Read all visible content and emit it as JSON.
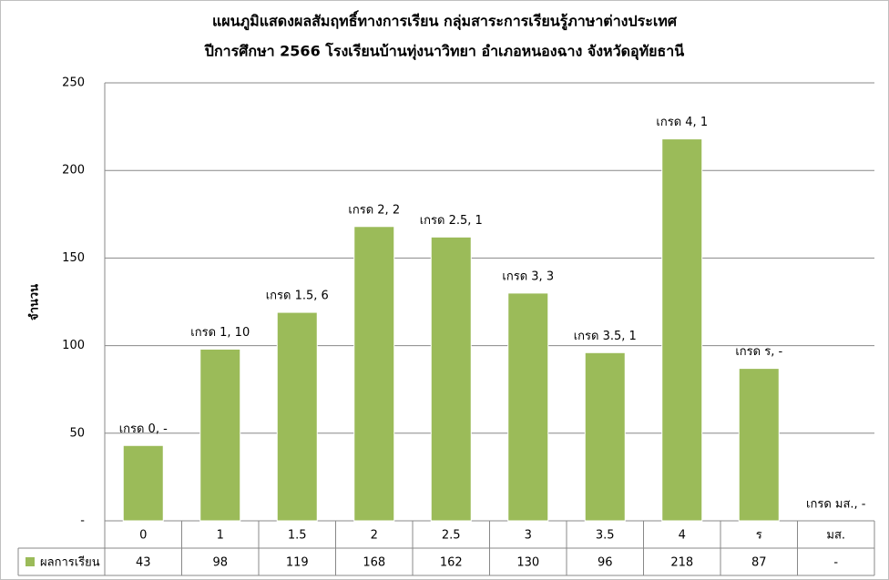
{
  "chart_data": {
    "type": "bar",
    "title": "แผนภูมิแสดงผลสัมฤทธิ์ทางการเรียน กลุ่มสาระการเรียนรู้ภาษาต่างประเทศ",
    "subtitle": "ปีการศึกษา 2566 โรงเรียนบ้านทุ่งนาวิทยา อำเภอหนองฉาง จังหวัดอุทัยธานี",
    "y_label": "จำนวน",
    "categories": [
      "0",
      "1",
      "1.5",
      "2",
      "2.5",
      "3",
      "3.5",
      "4",
      "ร",
      "มส."
    ],
    "series": [
      {
        "name": "ผลการเรียน",
        "color": "#9bbb59",
        "values": [
          43,
          98,
          119,
          168,
          162,
          130,
          96,
          218,
          87,
          0
        ],
        "value_labels": [
          "43",
          "98",
          "119",
          "168",
          "162",
          "130",
          "96",
          "218",
          "87",
          "-"
        ]
      }
    ],
    "bar_labels": [
      "เกรด 0,  -",
      "เกรด 1,  10",
      "เกรด 1.5,  6",
      "เกรด 2,  2",
      "เกรด 2.5,  1",
      "เกรด 3,  3",
      "เกรด 3.5,  1",
      "เกรด 4,  1",
      "เกรด ร,  -",
      "เกรด มส.,  -"
    ],
    "ylim": [
      0,
      250
    ],
    "yticks": [
      {
        "value": 0,
        "label": "-"
      },
      50,
      100,
      150,
      200,
      250
    ],
    "grid": true
  }
}
